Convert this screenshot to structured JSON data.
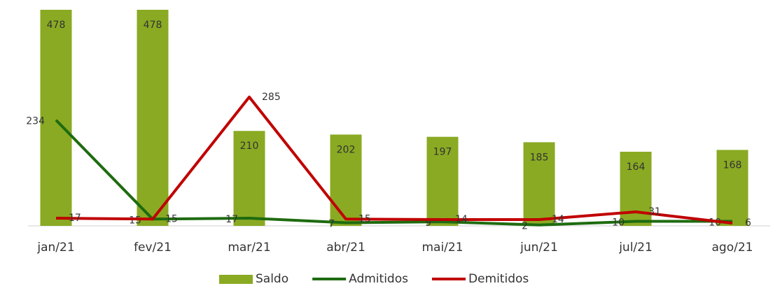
{
  "chart_data": {
    "type": "bar_line",
    "categories": [
      "jan/21",
      "fev/21",
      "mar/21",
      "abr/21",
      "mai/21",
      "jun/21",
      "jul/21",
      "ago/21"
    ],
    "series": [
      {
        "name": "Saldo",
        "type": "bar",
        "color": "#8aaa23",
        "values": [
          478,
          478,
          210,
          202,
          197,
          185,
          164,
          168
        ]
      },
      {
        "name": "Admitidos",
        "type": "line",
        "color": "#1e6b10",
        "values": [
          234,
          15,
          17,
          7,
          9,
          2,
          10,
          10
        ]
      },
      {
        "name": "Demitidos",
        "type": "line",
        "color": "#c00000",
        "values": [
          17,
          15,
          285,
          15,
          14,
          14,
          31,
          6
        ]
      }
    ],
    "ylim": [
      0,
      478
    ],
    "legend": "bottom"
  }
}
